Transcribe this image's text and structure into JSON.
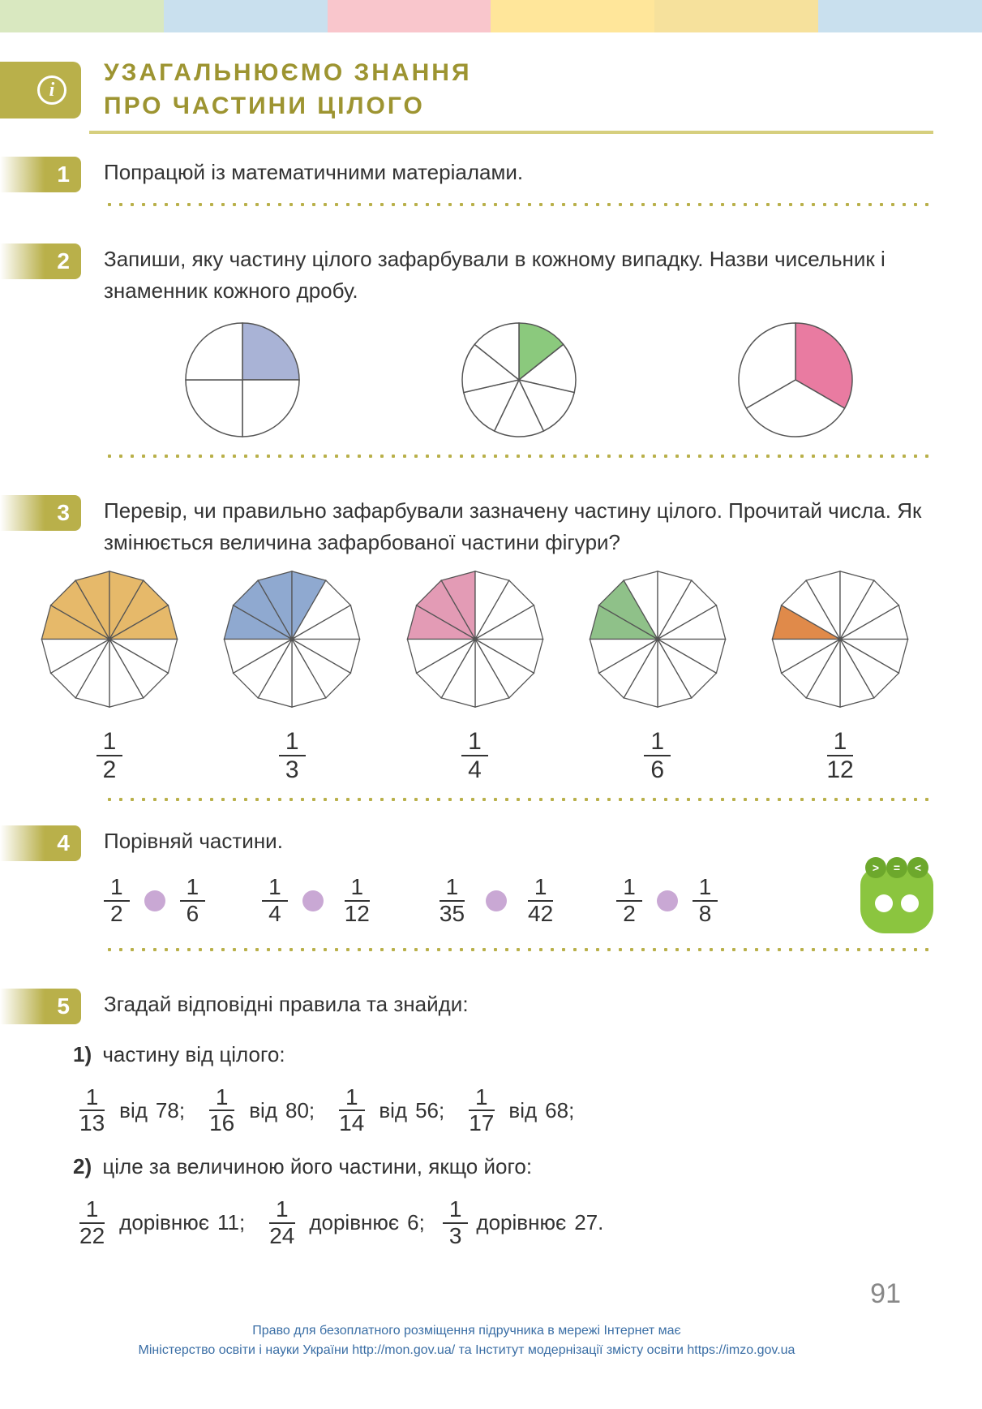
{
  "topbar_colors": [
    "#d9e8c0",
    "#c9e0ee",
    "#f9c6cc",
    "#ffe69a",
    "#f6e19c",
    "#c9e0ee"
  ],
  "title_line1": "УЗАГАЛЬНЮЄМО ЗНАННЯ",
  "title_line2": "ПРО ЧАСТИНИ ЦІЛОГО",
  "ex1": {
    "num": "1",
    "text": "Попрацюй із математичними матеріалами."
  },
  "ex2": {
    "num": "2",
    "text": "Запиши, яку частину цілого зафарбували в кожному випадку. Назви чисельник і знаменник кожного дробу.",
    "circles": [
      {
        "parts": 4,
        "shaded": [
          0
        ],
        "fill": "#a9b3d6"
      },
      {
        "parts": 7,
        "shaded": [
          0
        ],
        "fill": "#8bc97d"
      },
      {
        "parts": 3,
        "shaded": [
          0
        ],
        "fill": "#e97ba1"
      }
    ]
  },
  "ex3": {
    "num": "3",
    "text": "Перевір, чи правильно зафарбували зазначену частину цілого. Прочитай числа. Як змінюється величина зафарбованої частини фігури?",
    "hexes": [
      {
        "shaded": 6,
        "fill": "#e6b96a",
        "num": "1",
        "den": "2"
      },
      {
        "shaded": 4,
        "fill": "#8fa9d0",
        "num": "1",
        "den": "3"
      },
      {
        "shaded": 3,
        "fill": "#e39bb5",
        "num": "1",
        "den": "4"
      },
      {
        "shaded": 2,
        "fill": "#8fc189",
        "num": "1",
        "den": "6"
      },
      {
        "shaded": 1,
        "fill": "#e08a4a",
        "num": "1",
        "den": "12"
      }
    ]
  },
  "ex4": {
    "num": "4",
    "text": "Порівняй частини.",
    "pairs": [
      {
        "a": {
          "n": "1",
          "d": "2"
        },
        "b": {
          "n": "1",
          "d": "6"
        }
      },
      {
        "a": {
          "n": "1",
          "d": "4"
        },
        "b": {
          "n": "1",
          "d": "12"
        }
      },
      {
        "a": {
          "n": "1",
          "d": "35"
        },
        "b": {
          "n": "1",
          "d": "42"
        }
      },
      {
        "a": {
          "n": "1",
          "d": "2"
        },
        "b": {
          "n": "1",
          "d": "8"
        }
      }
    ]
  },
  "ex5": {
    "num": "5",
    "text": "Згадай відповідні правила та знайди:",
    "part1_label": "1)",
    "part1_text": "частину від цілого:",
    "part1_items": [
      {
        "n": "1",
        "d": "13",
        "word": "від",
        "v": "78;"
      },
      {
        "n": "1",
        "d": "16",
        "word": "від",
        "v": "80;"
      },
      {
        "n": "1",
        "d": "14",
        "word": "від",
        "v": "56;"
      },
      {
        "n": "1",
        "d": "17",
        "word": "від",
        "v": "68;"
      }
    ],
    "part2_label": "2)",
    "part2_text": "ціле за величиною його частини, якщо його:",
    "part2_items": [
      {
        "n": "1",
        "d": "22",
        "word": "дорівнює",
        "v": "11;"
      },
      {
        "n": "1",
        "d": "24",
        "word": "дорівнює",
        "v": "6;"
      },
      {
        "n": "1",
        "d": "3",
        "word": "дорівнює",
        "v": "27."
      }
    ]
  },
  "page_number": "91",
  "footer_line1": "Право для безоплатного розміщення підручника в мережі Інтернет має",
  "footer_line2": "Міністерство освіти і науки України http://mon.gov.ua/ та Інститут модернізації змісту освіти https://imzo.gov.ua"
}
